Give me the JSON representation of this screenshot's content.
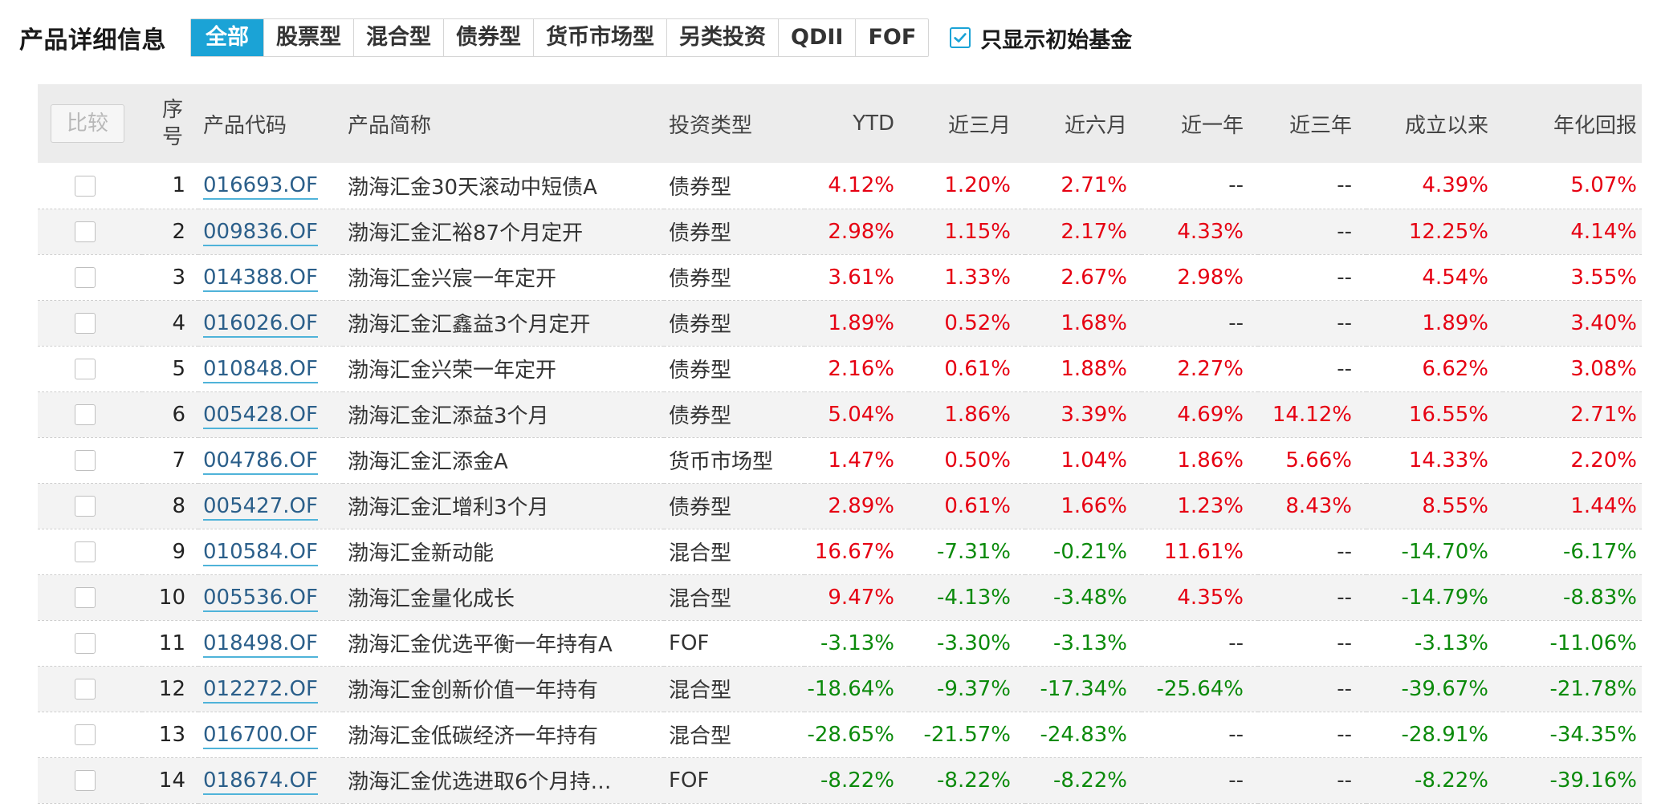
{
  "header": {
    "title": "产品详细信息",
    "tabs": [
      "全部",
      "股票型",
      "混合型",
      "债券型",
      "货币市场型",
      "另类投资",
      "QDII",
      "FOF"
    ],
    "active_tab": "全部",
    "filter_label": "只显示初始基金",
    "filter_checked": true
  },
  "table": {
    "compare_label": "比较",
    "columns": {
      "index": "序号",
      "code": "产品代码",
      "name": "产品简称",
      "type": "投资类型",
      "ytd": "YTD",
      "m3": "近三月",
      "m6": "近六月",
      "y1": "近一年",
      "y3": "近三年",
      "since": "成立以来",
      "annual": "年化回报"
    },
    "rows": [
      {
        "idx": "1",
        "code": "016693.OF",
        "name": "渤海汇金30天滚动中短债A",
        "type": "债券型",
        "ytd": "4.12%",
        "m3": "1.20%",
        "m6": "2.71%",
        "y1": "--",
        "y3": "--",
        "since": "4.39%",
        "annual": "5.07%"
      },
      {
        "idx": "2",
        "code": "009836.OF",
        "name": "渤海汇金汇裕87个月定开",
        "type": "债券型",
        "ytd": "2.98%",
        "m3": "1.15%",
        "m6": "2.17%",
        "y1": "4.33%",
        "y3": "--",
        "since": "12.25%",
        "annual": "4.14%"
      },
      {
        "idx": "3",
        "code": "014388.OF",
        "name": "渤海汇金兴宸一年定开",
        "type": "债券型",
        "ytd": "3.61%",
        "m3": "1.33%",
        "m6": "2.67%",
        "y1": "2.98%",
        "y3": "--",
        "since": "4.54%",
        "annual": "3.55%"
      },
      {
        "idx": "4",
        "code": "016026.OF",
        "name": "渤海汇金汇鑫益3个月定开",
        "type": "债券型",
        "ytd": "1.89%",
        "m3": "0.52%",
        "m6": "1.68%",
        "y1": "--",
        "y3": "--",
        "since": "1.89%",
        "annual": "3.40%"
      },
      {
        "idx": "5",
        "code": "010848.OF",
        "name": "渤海汇金兴荣一年定开",
        "type": "债券型",
        "ytd": "2.16%",
        "m3": "0.61%",
        "m6": "1.88%",
        "y1": "2.27%",
        "y3": "--",
        "since": "6.62%",
        "annual": "3.08%"
      },
      {
        "idx": "6",
        "code": "005428.OF",
        "name": "渤海汇金汇添益3个月",
        "type": "债券型",
        "ytd": "5.04%",
        "m3": "1.86%",
        "m6": "3.39%",
        "y1": "4.69%",
        "y3": "14.12%",
        "since": "16.55%",
        "annual": "2.71%"
      },
      {
        "idx": "7",
        "code": "004786.OF",
        "name": "渤海汇金汇添金A",
        "type": "货币市场型",
        "ytd": "1.47%",
        "m3": "0.50%",
        "m6": "1.04%",
        "y1": "1.86%",
        "y3": "5.66%",
        "since": "14.33%",
        "annual": "2.20%"
      },
      {
        "idx": "8",
        "code": "005427.OF",
        "name": "渤海汇金汇增利3个月",
        "type": "债券型",
        "ytd": "2.89%",
        "m3": "0.61%",
        "m6": "1.66%",
        "y1": "1.23%",
        "y3": "8.43%",
        "since": "8.55%",
        "annual": "1.44%"
      },
      {
        "idx": "9",
        "code": "010584.OF",
        "name": "渤海汇金新动能",
        "type": "混合型",
        "ytd": "16.67%",
        "m3": "-7.31%",
        "m6": "-0.21%",
        "y1": "11.61%",
        "y3": "--",
        "since": "-14.70%",
        "annual": "-6.17%"
      },
      {
        "idx": "10",
        "code": "005536.OF",
        "name": "渤海汇金量化成长",
        "type": "混合型",
        "ytd": "9.47%",
        "m3": "-4.13%",
        "m6": "-3.48%",
        "y1": "4.35%",
        "y3": "--",
        "since": "-14.79%",
        "annual": "-8.83%"
      },
      {
        "idx": "11",
        "code": "018498.OF",
        "name": "渤海汇金优选平衡一年持有A",
        "type": "FOF",
        "ytd": "-3.13%",
        "m3": "-3.30%",
        "m6": "-3.13%",
        "y1": "--",
        "y3": "--",
        "since": "-3.13%",
        "annual": "-11.06%"
      },
      {
        "idx": "12",
        "code": "012272.OF",
        "name": "渤海汇金创新价值一年持有",
        "type": "混合型",
        "ytd": "-18.64%",
        "m3": "-9.37%",
        "m6": "-17.34%",
        "y1": "-25.64%",
        "y3": "--",
        "since": "-39.67%",
        "annual": "-21.78%"
      },
      {
        "idx": "13",
        "code": "016700.OF",
        "name": "渤海汇金低碳经济一年持有",
        "type": "混合型",
        "ytd": "-28.65%",
        "m3": "-21.57%",
        "m6": "-24.83%",
        "y1": "--",
        "y3": "--",
        "since": "-28.91%",
        "annual": "-34.35%"
      },
      {
        "idx": "14",
        "code": "018674.OF",
        "name": "渤海汇金优选进取6个月持…",
        "type": "FOF",
        "ytd": "-8.22%",
        "m3": "-8.22%",
        "m6": "-8.22%",
        "y1": "--",
        "y3": "--",
        "since": "-8.22%",
        "annual": "-39.16%"
      }
    ]
  },
  "colors": {
    "accent": "#1ba3d6",
    "positive": "#e60012",
    "negative": "#0b8a0b",
    "link": "#2b5f8a"
  }
}
